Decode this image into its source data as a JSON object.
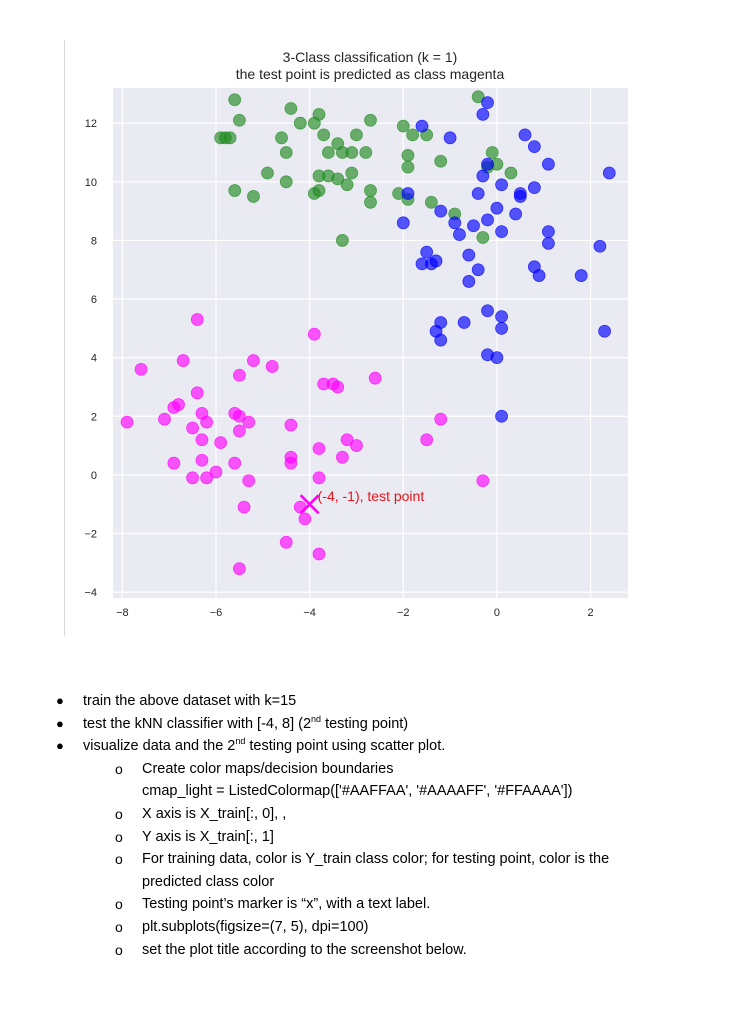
{
  "chart_data": {
    "type": "scatter",
    "title": "3-Class classification (k = 1)",
    "subtitle": "the test point is predicted as class magenta",
    "xlabel": "",
    "ylabel": "",
    "xlim": [
      -8.2,
      2.8
    ],
    "ylim": [
      -4.2,
      13.2
    ],
    "xticks": [
      -8,
      -6,
      -4,
      -2,
      0,
      2
    ],
    "yticks": [
      -4,
      -2,
      0,
      2,
      4,
      6,
      8,
      10,
      12
    ],
    "grid": true,
    "background": "#eaeaf2",
    "series": [
      {
        "color": "#228b22",
        "points": [
          [
            -5.6,
            12.8
          ],
          [
            -5.5,
            12.1
          ],
          [
            -5.9,
            11.5
          ],
          [
            -5.8,
            11.5
          ],
          [
            -5.7,
            11.5
          ],
          [
            -5.6,
            9.7
          ],
          [
            -5.2,
            9.5
          ],
          [
            -4.9,
            10.3
          ],
          [
            -4.5,
            11.0
          ],
          [
            -4.6,
            11.5
          ],
          [
            -4.4,
            12.5
          ],
          [
            -4.2,
            12.0
          ],
          [
            -4.5,
            10.0
          ],
          [
            -3.9,
            12.0
          ],
          [
            -3.8,
            12.3
          ],
          [
            -3.7,
            11.6
          ],
          [
            -3.6,
            11.0
          ],
          [
            -3.4,
            11.3
          ],
          [
            -3.3,
            11.0
          ],
          [
            -3.1,
            11.0
          ],
          [
            -3.0,
            11.6
          ],
          [
            -2.8,
            11.0
          ],
          [
            -2.7,
            12.1
          ],
          [
            -3.1,
            10.3
          ],
          [
            -3.4,
            10.1
          ],
          [
            -3.2,
            9.9
          ],
          [
            -3.6,
            10.2
          ],
          [
            -3.8,
            10.2
          ],
          [
            -3.9,
            9.6
          ],
          [
            -3.8,
            9.7
          ],
          [
            -2.7,
            9.7
          ],
          [
            -2.7,
            9.3
          ],
          [
            -3.3,
            8.0
          ],
          [
            -2.1,
            9.6
          ],
          [
            -1.9,
            9.4
          ],
          [
            -1.9,
            10.5
          ],
          [
            -2.0,
            11.9
          ],
          [
            -1.8,
            11.6
          ],
          [
            -1.5,
            11.6
          ],
          [
            -1.9,
            10.9
          ],
          [
            -1.2,
            10.7
          ],
          [
            -1.4,
            9.3
          ],
          [
            -0.9,
            8.9
          ],
          [
            -0.4,
            12.9
          ],
          [
            -0.1,
            11.0
          ],
          [
            0.0,
            10.6
          ],
          [
            0.3,
            10.3
          ],
          [
            -0.2,
            10.5
          ],
          [
            -0.3,
            8.1
          ]
        ]
      },
      {
        "color": "#0000ff",
        "points": [
          [
            -1.9,
            9.6
          ],
          [
            -1.6,
            11.9
          ],
          [
            -1.0,
            11.5
          ],
          [
            -0.3,
            12.3
          ],
          [
            -0.2,
            12.7
          ],
          [
            0.6,
            11.6
          ],
          [
            0.8,
            11.2
          ],
          [
            1.1,
            10.6
          ],
          [
            2.4,
            10.3
          ],
          [
            -0.3,
            10.2
          ],
          [
            -0.2,
            10.6
          ],
          [
            0.1,
            9.9
          ],
          [
            -0.4,
            9.6
          ],
          [
            0.0,
            9.1
          ],
          [
            0.5,
            9.5
          ],
          [
            0.4,
            8.9
          ],
          [
            0.8,
            9.8
          ],
          [
            -1.2,
            9.0
          ],
          [
            -0.9,
            8.6
          ],
          [
            -0.8,
            8.2
          ],
          [
            -0.5,
            8.5
          ],
          [
            -0.2,
            8.7
          ],
          [
            0.1,
            8.3
          ],
          [
            1.1,
            8.3
          ],
          [
            1.1,
            7.9
          ],
          [
            -2.0,
            8.6
          ],
          [
            -1.5,
            7.6
          ],
          [
            -1.3,
            7.3
          ],
          [
            -1.4,
            7.2
          ],
          [
            -1.6,
            7.2
          ],
          [
            -0.6,
            7.5
          ],
          [
            -0.4,
            7.0
          ],
          [
            -0.6,
            6.6
          ],
          [
            0.8,
            7.1
          ],
          [
            0.9,
            6.8
          ],
          [
            1.8,
            6.8
          ],
          [
            2.2,
            7.8
          ],
          [
            -1.2,
            5.2
          ],
          [
            -1.3,
            4.9
          ],
          [
            -1.2,
            4.6
          ],
          [
            -0.7,
            5.2
          ],
          [
            -0.2,
            5.6
          ],
          [
            0.1,
            5.4
          ],
          [
            0.1,
            5.0
          ],
          [
            2.3,
            4.9
          ],
          [
            -0.2,
            4.1
          ],
          [
            0.0,
            4.0
          ],
          [
            0.1,
            2.0
          ],
          [
            0.5,
            9.6
          ]
        ]
      },
      {
        "color": "#ff00ff",
        "points": [
          [
            -6.4,
            5.3
          ],
          [
            -6.7,
            3.9
          ],
          [
            -7.6,
            3.6
          ],
          [
            -7.9,
            1.8
          ],
          [
            -7.1,
            1.9
          ],
          [
            -6.9,
            2.3
          ],
          [
            -6.8,
            2.4
          ],
          [
            -6.4,
            2.8
          ],
          [
            -6.5,
            1.6
          ],
          [
            -6.3,
            1.2
          ],
          [
            -6.3,
            2.1
          ],
          [
            -6.2,
            1.8
          ],
          [
            -6.3,
            0.5
          ],
          [
            -6.9,
            0.4
          ],
          [
            -6.0,
            0.1
          ],
          [
            -6.5,
            -0.1
          ],
          [
            -6.2,
            -0.1
          ],
          [
            -5.9,
            1.1
          ],
          [
            -5.5,
            2.0
          ],
          [
            -5.6,
            2.1
          ],
          [
            -5.5,
            1.5
          ],
          [
            -5.3,
            1.8
          ],
          [
            -5.5,
            3.4
          ],
          [
            -5.2,
            3.9
          ],
          [
            -4.8,
            3.7
          ],
          [
            -4.4,
            1.7
          ],
          [
            -5.6,
            0.4
          ],
          [
            -5.3,
            -0.2
          ],
          [
            -5.4,
            -1.1
          ],
          [
            -5.5,
            -3.2
          ],
          [
            -4.4,
            0.4
          ],
          [
            -4.4,
            0.6
          ],
          [
            -4.2,
            -1.1
          ],
          [
            -4.1,
            -1.5
          ],
          [
            -4.5,
            -2.3
          ],
          [
            -3.8,
            -2.7
          ],
          [
            -3.8,
            -0.1
          ],
          [
            -3.8,
            0.9
          ],
          [
            -3.9,
            4.8
          ],
          [
            -3.7,
            3.1
          ],
          [
            -3.5,
            3.1
          ],
          [
            -3.4,
            3.0
          ],
          [
            -3.3,
            0.6
          ],
          [
            -3.2,
            1.2
          ],
          [
            -3.0,
            1.0
          ],
          [
            -2.6,
            3.3
          ],
          [
            -1.5,
            1.2
          ],
          [
            -1.2,
            1.9
          ],
          [
            -0.3,
            -0.2
          ]
        ]
      }
    ],
    "test_point": {
      "x": -4,
      "y": -1,
      "marker": "x",
      "color": "#ff00ff",
      "label": "(-4, -1), test point"
    }
  },
  "instructions": {
    "items": [
      {
        "text": "train the above dataset with k=15"
      },
      {
        "text": "test the kNN classifier with [-4, 8] (2",
        "sup": "nd",
        "tail": " testing point)"
      },
      {
        "text": "visualize data and the 2",
        "sup": "nd",
        "tail": " testing point using scatter plot."
      }
    ],
    "subitems": [
      {
        "text": "Create color maps/decision boundaries"
      },
      {
        "text": "cmap_light = ListedColormap(['#AAFFAA', '#AAAAFF', '#FFAAAA'])"
      },
      {
        "text": "X axis is X_train[:, 0], ,"
      },
      {
        "text": "Y axis is X_train[:, 1]"
      },
      {
        "text": "For training data, color is Y_train class color; for testing point, color is the"
      },
      {
        "text": "predicted class color"
      },
      {
        "text": "Testing point’s marker is “x”, with a text label."
      },
      {
        "text": "plt.subplots(figsize=(7, 5), dpi=100)"
      },
      {
        "text": "set the plot title according to the screenshot below."
      }
    ],
    "bullet_glyph": "●",
    "sub_bullet_glyph": "o"
  }
}
